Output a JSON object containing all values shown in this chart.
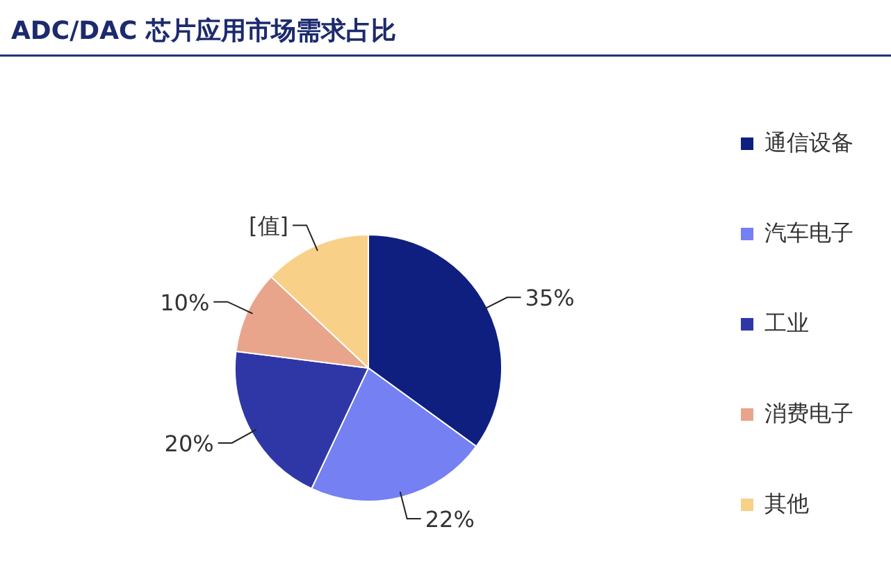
{
  "chart_data": {
    "type": "pie",
    "title": "ADC/DAC 芯片应用市场需求占比",
    "categories": [
      "通信设备",
      "汽车电子",
      "工业",
      "消费电子",
      "其他"
    ],
    "values": [
      35,
      22,
      20,
      10,
      13
    ],
    "colors": [
      "#0f1f80",
      "#7580f2",
      "#2f37a6",
      "#e8a58c",
      "#f8d088"
    ],
    "value_labels": [
      "35%",
      "22%",
      "20%",
      "10%",
      "[值]"
    ],
    "legend": "right"
  }
}
